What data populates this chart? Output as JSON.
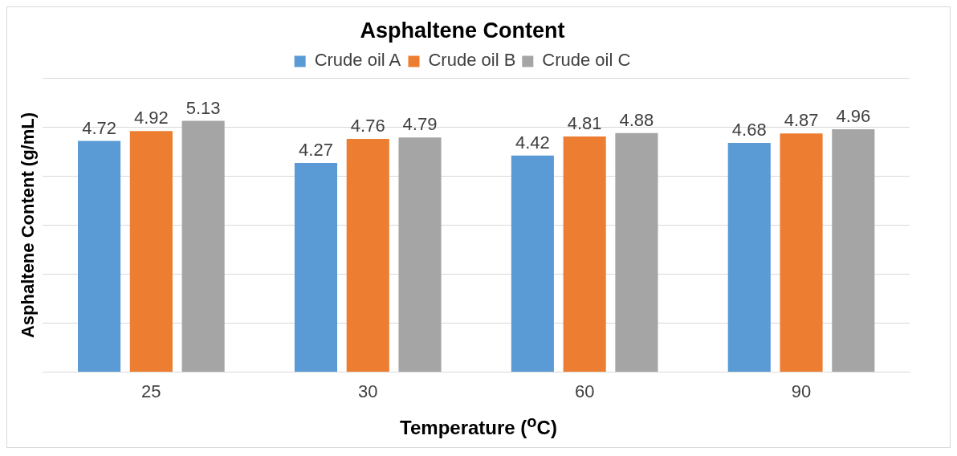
{
  "chart_data": {
    "type": "bar",
    "title": "Asphaltene Content",
    "xlabel": "Temperature ($^{o}$C)",
    "ylabel": "Asphaltene Content (g/mL)",
    "categories": [
      "25",
      "30",
      "60",
      "90"
    ],
    "series": [
      {
        "name": "Crude oil A",
        "color": "#5b9bd5",
        "values": [
          4.72,
          4.27,
          4.42,
          4.68
        ]
      },
      {
        "name": "Crude oil B",
        "color": "#ed7d31",
        "values": [
          4.92,
          4.76,
          4.81,
          4.87
        ]
      },
      {
        "name": "Crude oil C",
        "color": "#a5a5a5",
        "values": [
          5.13,
          4.79,
          4.88,
          4.96
        ]
      }
    ],
    "ylim": [
      0,
      6
    ],
    "yticks": [
      {
        "value": 0,
        "label": null
      },
      {
        "value": 1,
        "label": null
      },
      {
        "value": 2,
        "label": null
      },
      {
        "value": 3,
        "label": null
      },
      {
        "value": 4,
        "label": null
      },
      {
        "value": 5,
        "label": null
      },
      {
        "value": 6,
        "label": null
      }
    ],
    "tick_labels": "x",
    "grid": "y",
    "legend": "top",
    "data_labels": true
  }
}
